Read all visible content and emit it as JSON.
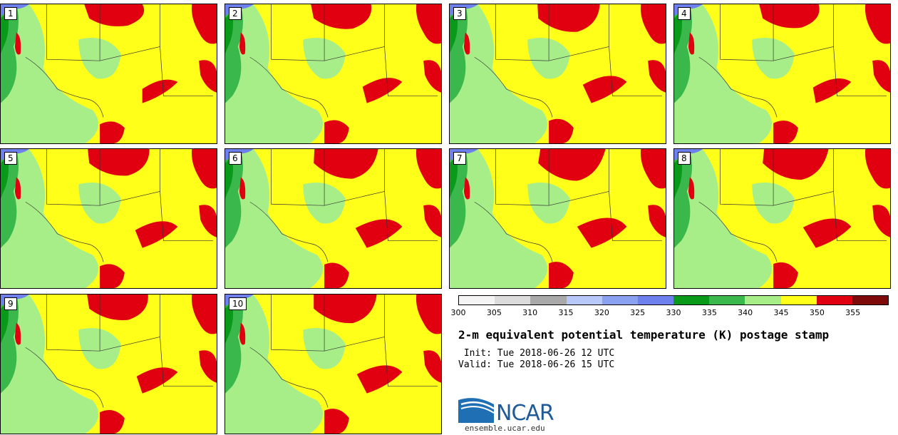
{
  "panels": [
    {
      "label": "1"
    },
    {
      "label": "2"
    },
    {
      "label": "3"
    },
    {
      "label": "4"
    },
    {
      "label": "5"
    },
    {
      "label": "6"
    },
    {
      "label": "7"
    },
    {
      "label": "8"
    },
    {
      "label": "9"
    },
    {
      "label": "10"
    }
  ],
  "colorbar": {
    "ticks": [
      "300",
      "305",
      "310",
      "315",
      "320",
      "325",
      "330",
      "335",
      "340",
      "345",
      "350",
      "355"
    ],
    "colors": [
      "#f4f4f4",
      "#dcdcdc",
      "#a9a9a9",
      "#b8c8f8",
      "#8aa0f0",
      "#6e80ee",
      "#0a9a1a",
      "#3bb84b",
      "#a8ee88",
      "#ffff1a",
      "#e00010",
      "#7e0a0a"
    ]
  },
  "title": "2-m equivalent potential temperature (K) postage stamp",
  "init": " Init: Tue 2018-06-26 12 UTC",
  "valid": "Valid: Tue 2018-06-26 15 UTC",
  "logo": {
    "text": "NCAR",
    "site": "ensemble.ucar.edu"
  }
}
